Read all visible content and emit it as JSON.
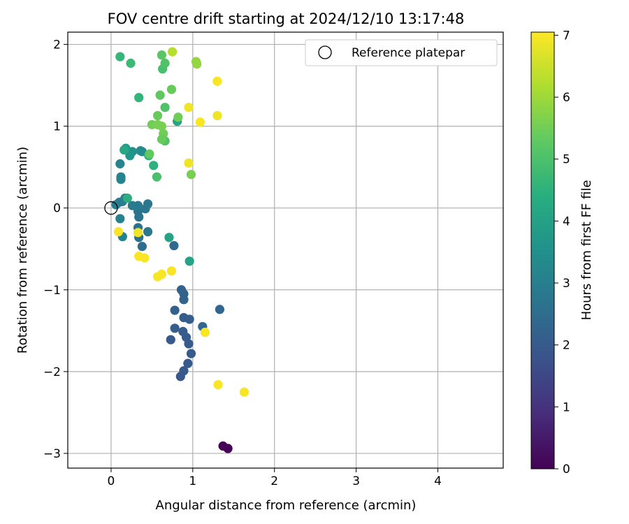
{
  "chart_data": {
    "type": "scatter",
    "title": "FOV centre drift starting at 2024/12/10 13:17:48",
    "xlabel": "Angular distance from reference (arcmin)",
    "ylabel": "Rotation from reference (arcmin)",
    "xlim": [
      -0.53,
      4.8
    ],
    "ylim": [
      -3.18,
      2.15
    ],
    "xticks": [
      0,
      1,
      2,
      3,
      4
    ],
    "yticks": [
      -3,
      -2,
      -1,
      0,
      1,
      2
    ],
    "grid": true,
    "legend": {
      "position": "top-right",
      "entries": [
        "Reference platepar"
      ]
    },
    "reference_point": {
      "x": 0,
      "y": 0
    },
    "colorbar": {
      "label": "Hours from first FF file",
      "range": [
        0,
        7.05
      ],
      "ticks": [
        0,
        1,
        2,
        3,
        4,
        5,
        6,
        7
      ],
      "colormap": "viridis"
    },
    "points": [
      {
        "x": 1.37,
        "y": -2.91,
        "h": 0.05
      },
      {
        "x": 1.43,
        "y": -2.94,
        "h": 0.05
      },
      {
        "x": 0.73,
        "y": -1.61,
        "h": 1.95
      },
      {
        "x": 0.85,
        "y": -2.06,
        "h": 1.9
      },
      {
        "x": 0.89,
        "y": -1.99,
        "h": 1.95
      },
      {
        "x": 0.94,
        "y": -1.9,
        "h": 2.0
      },
      {
        "x": 0.98,
        "y": -1.78,
        "h": 2.0
      },
      {
        "x": 0.95,
        "y": -1.66,
        "h": 2.0
      },
      {
        "x": 0.92,
        "y": -1.58,
        "h": 2.0
      },
      {
        "x": 0.88,
        "y": -1.51,
        "h": 2.05
      },
      {
        "x": 0.78,
        "y": -1.47,
        "h": 2.1
      },
      {
        "x": 0.89,
        "y": -1.34,
        "h": 2.1
      },
      {
        "x": 0.96,
        "y": -1.36,
        "h": 2.1
      },
      {
        "x": 0.78,
        "y": -1.25,
        "h": 2.15
      },
      {
        "x": 0.89,
        "y": -1.12,
        "h": 2.2
      },
      {
        "x": 0.89,
        "y": -1.05,
        "h": 2.2
      },
      {
        "x": 0.86,
        "y": -1.0,
        "h": 2.2
      },
      {
        "x": 1.12,
        "y": -1.45,
        "h": 2.3
      },
      {
        "x": 1.33,
        "y": -1.24,
        "h": 2.3
      },
      {
        "x": 0.77,
        "y": -0.46,
        "h": 2.4
      },
      {
        "x": 0.38,
        "y": -0.47,
        "h": 2.5
      },
      {
        "x": 0.34,
        "y": -0.36,
        "h": 2.6
      },
      {
        "x": 0.33,
        "y": -0.24,
        "h": 2.6
      },
      {
        "x": 0.34,
        "y": -0.11,
        "h": 2.7
      },
      {
        "x": 0.33,
        "y": -0.04,
        "h": 2.7
      },
      {
        "x": 0.45,
        "y": -0.29,
        "h": 2.8
      },
      {
        "x": 0.45,
        "y": 0.05,
        "h": 2.8
      },
      {
        "x": 0.42,
        "y": -0.01,
        "h": 2.8
      },
      {
        "x": 0.33,
        "y": 0.03,
        "h": 2.9
      },
      {
        "x": 0.26,
        "y": 0.03,
        "h": 2.9
      },
      {
        "x": 0.17,
        "y": 0.12,
        "h": 3.0
      },
      {
        "x": 0.14,
        "y": 0.08,
        "h": 3.0
      },
      {
        "x": 0.1,
        "y": 0.07,
        "h": 3.0
      },
      {
        "x": 0.06,
        "y": 0.04,
        "h": 3.0
      },
      {
        "x": 0.11,
        "y": -0.13,
        "h": 3.1
      },
      {
        "x": 0.14,
        "y": -0.35,
        "h": 3.1
      },
      {
        "x": 0.12,
        "y": 0.35,
        "h": 3.2
      },
      {
        "x": 0.12,
        "y": 0.38,
        "h": 3.2
      },
      {
        "x": 0.11,
        "y": 0.54,
        "h": 3.2
      },
      {
        "x": 0.38,
        "y": 0.69,
        "h": 3.3
      },
      {
        "x": 0.36,
        "y": 0.7,
        "h": 3.4
      },
      {
        "x": 0.26,
        "y": 0.69,
        "h": 3.6
      },
      {
        "x": 0.23,
        "y": 0.64,
        "h": 3.7
      },
      {
        "x": 0.18,
        "y": 0.73,
        "h": 3.8
      },
      {
        "x": 0.16,
        "y": 0.71,
        "h": 4.2
      },
      {
        "x": 0.71,
        "y": -0.36,
        "h": 4.1
      },
      {
        "x": 0.96,
        "y": -0.65,
        "h": 4.1
      },
      {
        "x": 0.2,
        "y": 0.12,
        "h": 4.4
      },
      {
        "x": 0.81,
        "y": 1.06,
        "h": 4.1
      },
      {
        "x": 0.46,
        "y": 0.64,
        "h": 4.5
      },
      {
        "x": 0.52,
        "y": 0.52,
        "h": 4.5
      },
      {
        "x": 0.34,
        "y": 1.35,
        "h": 4.6
      },
      {
        "x": 0.11,
        "y": 1.85,
        "h": 4.7
      },
      {
        "x": 0.24,
        "y": 1.77,
        "h": 4.8
      },
      {
        "x": 0.56,
        "y": 0.38,
        "h": 5.0
      },
      {
        "x": 0.47,
        "y": 0.66,
        "h": 5.3
      },
      {
        "x": 0.66,
        "y": 0.82,
        "h": 5.1
      },
      {
        "x": 0.66,
        "y": 1.23,
        "h": 5.1
      },
      {
        "x": 0.63,
        "y": 1.7,
        "h": 5.0
      },
      {
        "x": 0.66,
        "y": 1.77,
        "h": 5.1
      },
      {
        "x": 0.62,
        "y": 1.87,
        "h": 5.2
      },
      {
        "x": 0.82,
        "y": 1.11,
        "h": 5.5
      },
      {
        "x": 0.57,
        "y": 1.13,
        "h": 5.4
      },
      {
        "x": 0.6,
        "y": 1.38,
        "h": 5.3
      },
      {
        "x": 0.74,
        "y": 1.45,
        "h": 5.4
      },
      {
        "x": 0.5,
        "y": 1.02,
        "h": 5.5
      },
      {
        "x": 0.57,
        "y": 1.02,
        "h": 5.6
      },
      {
        "x": 0.62,
        "y": 1.0,
        "h": 5.6
      },
      {
        "x": 0.64,
        "y": 0.91,
        "h": 5.5
      },
      {
        "x": 0.62,
        "y": 0.84,
        "h": 5.4
      },
      {
        "x": 0.98,
        "y": 0.41,
        "h": 5.6
      },
      {
        "x": 1.04,
        "y": 1.79,
        "h": 5.9
      },
      {
        "x": 1.05,
        "y": 1.76,
        "h": 5.9
      },
      {
        "x": 0.75,
        "y": 1.91,
        "h": 6.3
      },
      {
        "x": 0.95,
        "y": 1.23,
        "h": 6.9
      },
      {
        "x": 1.09,
        "y": 1.05,
        "h": 7.0
      },
      {
        "x": 1.3,
        "y": 1.55,
        "h": 7.0
      },
      {
        "x": 1.3,
        "y": 1.13,
        "h": 6.9
      },
      {
        "x": 0.95,
        "y": 0.55,
        "h": 6.9
      },
      {
        "x": 0.09,
        "y": -0.29,
        "h": 7.0
      },
      {
        "x": 0.33,
        "y": -0.3,
        "h": 6.9
      },
      {
        "x": 0.34,
        "y": -0.59,
        "h": 7.0
      },
      {
        "x": 0.41,
        "y": -0.61,
        "h": 7.0
      },
      {
        "x": 0.74,
        "y": -0.77,
        "h": 7.0
      },
      {
        "x": 0.62,
        "y": -0.81,
        "h": 7.0
      },
      {
        "x": 0.57,
        "y": -0.84,
        "h": 7.0
      },
      {
        "x": 1.15,
        "y": -1.52,
        "h": 7.0
      },
      {
        "x": 1.31,
        "y": -2.16,
        "h": 7.0
      },
      {
        "x": 1.63,
        "y": -2.25,
        "h": 7.0
      }
    ]
  }
}
